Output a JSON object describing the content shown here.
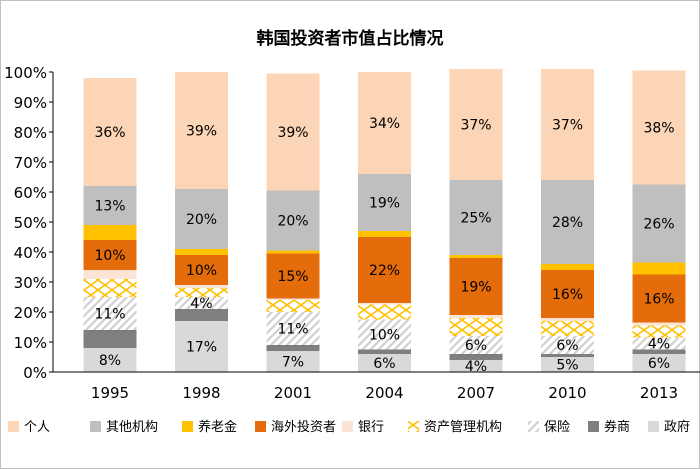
{
  "chart_data": {
    "type": "bar",
    "stacked": true,
    "title": "韩国投资者市值占比情况",
    "categories": [
      "1995",
      "1998",
      "2001",
      "2004",
      "2007",
      "2010",
      "2013"
    ],
    "ylim": [
      0,
      100
    ],
    "y_ticks": [
      "0%",
      "10%",
      "20%",
      "30%",
      "40%",
      "50%",
      "60%",
      "70%",
      "80%",
      "90%",
      "100%"
    ],
    "grid": false,
    "legend_position": "bottom",
    "series": [
      {
        "name": "政府",
        "color": "#d9d9d9",
        "pattern": "solid",
        "values": [
          8,
          17,
          7,
          6,
          4,
          5,
          6
        ],
        "labels": [
          "8%",
          "17%",
          "7%",
          "6%",
          "4%",
          "5%",
          "6%"
        ]
      },
      {
        "name": "券商",
        "color": "#7f7f7f",
        "pattern": "solid",
        "values": [
          6,
          4,
          2,
          1.5,
          2,
          1,
          1.5
        ],
        "labels": [
          "",
          "",
          "",
          "",
          "",
          "",
          ""
        ]
      },
      {
        "name": "保险",
        "color": "#d9d9d9",
        "pattern": "diag",
        "values": [
          11,
          4,
          11,
          10,
          6,
          6,
          4
        ],
        "labels": [
          "11%",
          "4%",
          "11%",
          "10%",
          "6%",
          "6%",
          "4%"
        ]
      },
      {
        "name": "资产管理机构",
        "color": "#ffc000",
        "pattern": "cross",
        "values": [
          6,
          3,
          4,
          5,
          6,
          5,
          4
        ],
        "labels": [
          "",
          "",
          "",
          "",
          "",
          "",
          ""
        ]
      },
      {
        "name": "银行",
        "color": "#fbe4d5",
        "pattern": "solid",
        "values": [
          3,
          1,
          0.5,
          0.5,
          1,
          1,
          1
        ],
        "labels": [
          "",
          "",
          "",
          "",
          "",
          "",
          ""
        ]
      },
      {
        "name": "海外投资者",
        "color": "#e46c0a",
        "pattern": "solid",
        "values": [
          10,
          10,
          15,
          22,
          19,
          16,
          16
        ],
        "labels": [
          "10%",
          "10%",
          "15%",
          "22%",
          "19%",
          "16%",
          "16%"
        ]
      },
      {
        "name": "养老金",
        "color": "#ffc000",
        "pattern": "solid",
        "values": [
          5,
          2,
          1,
          2,
          1,
          2,
          4
        ],
        "labels": [
          "",
          "",
          "",
          "",
          "",
          "",
          ""
        ]
      },
      {
        "name": "其他机构",
        "color": "#bfbfbf",
        "pattern": "solid",
        "values": [
          13,
          20,
          20,
          19,
          25,
          28,
          26
        ],
        "labels": [
          "13%",
          "20%",
          "20%",
          "19%",
          "25%",
          "28%",
          "26%"
        ]
      },
      {
        "name": "个人",
        "color": "#fbd5b5",
        "pattern": "solid",
        "values": [
          36,
          39,
          39,
          34,
          37,
          37,
          38
        ],
        "labels": [
          "36%",
          "39%",
          "39%",
          "34%",
          "37%",
          "37%",
          "38%"
        ]
      }
    ],
    "legend_order": [
      "个人",
      "其他机构",
      "养老金",
      "海外投资者",
      "银行",
      "资产管理机构",
      "保险",
      "券商",
      "政府"
    ]
  }
}
